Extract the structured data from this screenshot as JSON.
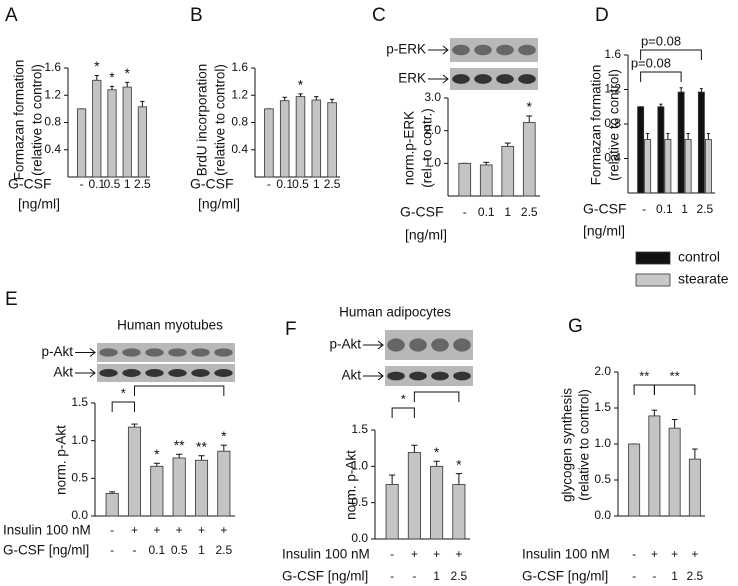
{
  "chart_data": [
    {
      "type": "bar",
      "panel": "A",
      "ylabel": [
        "Formazan formation",
        "(relative to control)"
      ],
      "xlabel": [
        "G-CSF",
        "[ng/ml]"
      ],
      "categories": [
        "-",
        "0.1",
        "0.5",
        "1",
        "2.5"
      ],
      "values": [
        1.0,
        1.42,
        1.28,
        1.32,
        1.03
      ],
      "errors": [
        0,
        0.07,
        0.05,
        0.07,
        0.08
      ],
      "significance": [
        null,
        "*",
        "*",
        "*",
        null
      ],
      "color": "#c4c4c4",
      "ylim": [
        0,
        1.6
      ],
      "yticks": [
        0.4,
        0.8,
        1.2,
        1.6
      ]
    },
    {
      "type": "bar",
      "panel": "B",
      "ylabel": [
        "BrdU incorporation",
        "(relative to control)"
      ],
      "xlabel": [
        "G-CSF",
        "[ng/ml]"
      ],
      "categories": [
        "-",
        "0.1",
        "0.5",
        "1",
        "2.5"
      ],
      "values": [
        1.0,
        1.12,
        1.18,
        1.13,
        1.09
      ],
      "errors": [
        0,
        0.05,
        0.04,
        0.05,
        0.05
      ],
      "significance": [
        null,
        null,
        "*",
        null,
        null
      ],
      "color": "#c4c4c4",
      "ylim": [
        0,
        1.6
      ],
      "yticks": [
        0.4,
        0.8,
        1.2,
        1.6
      ]
    },
    {
      "type": "bar",
      "panel": "C",
      "blots": [
        "p-ERK",
        "ERK"
      ],
      "ylabel": [
        "norm.p-ERK",
        "(rel. to contr.)"
      ],
      "xlabel": [
        "G-CSF",
        "[ng/ml]"
      ],
      "categories": [
        "-",
        "0.1",
        "1",
        "2.5"
      ],
      "values": [
        1.0,
        0.95,
        1.52,
        2.25
      ],
      "errors": [
        0,
        0.08,
        0.1,
        0.2
      ],
      "significance": [
        null,
        null,
        null,
        "*"
      ],
      "color": "#c4c4c4",
      "ylim": [
        0,
        3.0
      ],
      "yticks": [
        {
          "value": 1,
          "label": "1.0"
        },
        {
          "value": 2,
          "label": "2.0"
        },
        {
          "value": 3,
          "label": "3.0"
        }
      ]
    },
    {
      "type": "bar",
      "panel": "D",
      "ylabel": [
        "Formazan formation",
        "(relative to control)"
      ],
      "xlabel": [
        "G-CSF",
        "[ng/ml]"
      ],
      "categories": [
        "-",
        "0.1",
        "1",
        "2.5"
      ],
      "series": [
        {
          "name": "control",
          "color": "#111111",
          "values": [
            1.0,
            1.0,
            1.17,
            1.17
          ],
          "errors": [
            0,
            0.03,
            0.05,
            0.04
          ]
        },
        {
          "name": "stearate",
          "color": "#c8c8c8",
          "values": [
            0.62,
            0.62,
            0.62,
            0.62
          ],
          "errors": [
            0.07,
            0.07,
            0.07,
            0.07
          ]
        }
      ],
      "annotations": [
        "p=0.08",
        "p=0.08"
      ],
      "ylim": [
        0,
        1.6
      ],
      "yticks": [
        0.4,
        0.8,
        1.2,
        1.6
      ]
    },
    {
      "type": "bar",
      "panel": "E",
      "title": "Human myotubes",
      "blots": [
        "p-Akt",
        "Akt"
      ],
      "ylabel": [
        "norm. p-Akt"
      ],
      "rows": [
        {
          "label": "Insulin 100 nM",
          "values": [
            "-",
            "+",
            "+",
            "+",
            "+",
            "+"
          ]
        },
        {
          "label": "G-CSF [ng/ml]",
          "values": [
            "-",
            "-",
            "0.1",
            "0.5",
            "1",
            "2.5"
          ]
        }
      ],
      "values": [
        0.3,
        1.18,
        0.66,
        0.77,
        0.74,
        0.86
      ],
      "errors": [
        0.02,
        0.04,
        0.04,
        0.05,
        0.06,
        0.08
      ],
      "significance": [
        null,
        null,
        "*",
        "**",
        "**",
        "*"
      ],
      "annotations": [
        "*"
      ],
      "color": "#c4c4c4",
      "ylim": [
        0,
        1.5
      ],
      "yticks": [
        {
          "value": 0,
          "label": "0.0"
        },
        0.5,
        {
          "value": 1,
          "label": "1.0"
        },
        1.5
      ]
    },
    {
      "type": "bar",
      "panel": "F",
      "title": "Human adipocytes",
      "blots": [
        "p-Akt",
        "Akt"
      ],
      "ylabel": [
        "norm. p-Akt"
      ],
      "rows": [
        {
          "label": "Insulin 100 nM",
          "values": [
            "-",
            "+",
            "+",
            "+"
          ]
        },
        {
          "label": "G-CSF [ng/ml]",
          "values": [
            "-",
            "-",
            "1",
            "2.5"
          ]
        }
      ],
      "values": [
        0.75,
        1.19,
        1.0,
        0.75
      ],
      "errors": [
        0.13,
        0.1,
        0.07,
        0.15
      ],
      "significance": [
        null,
        null,
        "*",
        "*"
      ],
      "annotations": [
        "*"
      ],
      "color": "#c4c4c4",
      "ylim": [
        0,
        1.5
      ],
      "yticks": [
        {
          "value": 0,
          "label": "0.0"
        },
        0.5,
        {
          "value": 1,
          "label": "1.0"
        },
        1.5
      ]
    },
    {
      "type": "bar",
      "panel": "G",
      "ylabel": [
        "glycogen synthesis",
        "(relative to control)"
      ],
      "rows": [
        {
          "label": "Insulin 100 nM",
          "values": [
            "-",
            "+",
            "+",
            "+"
          ]
        },
        {
          "label": "G-CSF [ng/ml]",
          "values": [
            "-",
            "-",
            "1",
            "2.5"
          ]
        }
      ],
      "values": [
        1.0,
        1.39,
        1.22,
        0.79
      ],
      "errors": [
        0,
        0.08,
        0.12,
        0.14
      ],
      "significance": [
        null,
        null,
        null,
        null
      ],
      "annotations": [
        "**",
        "**"
      ],
      "color": "#c4c4c4",
      "ylim": [
        0,
        2.0
      ],
      "yticks": [
        {
          "value": 0,
          "label": "0.0"
        },
        0.5,
        {
          "value": 1,
          "label": "1.0"
        },
        1.5,
        {
          "value": 2,
          "label": "2.0"
        }
      ]
    }
  ]
}
